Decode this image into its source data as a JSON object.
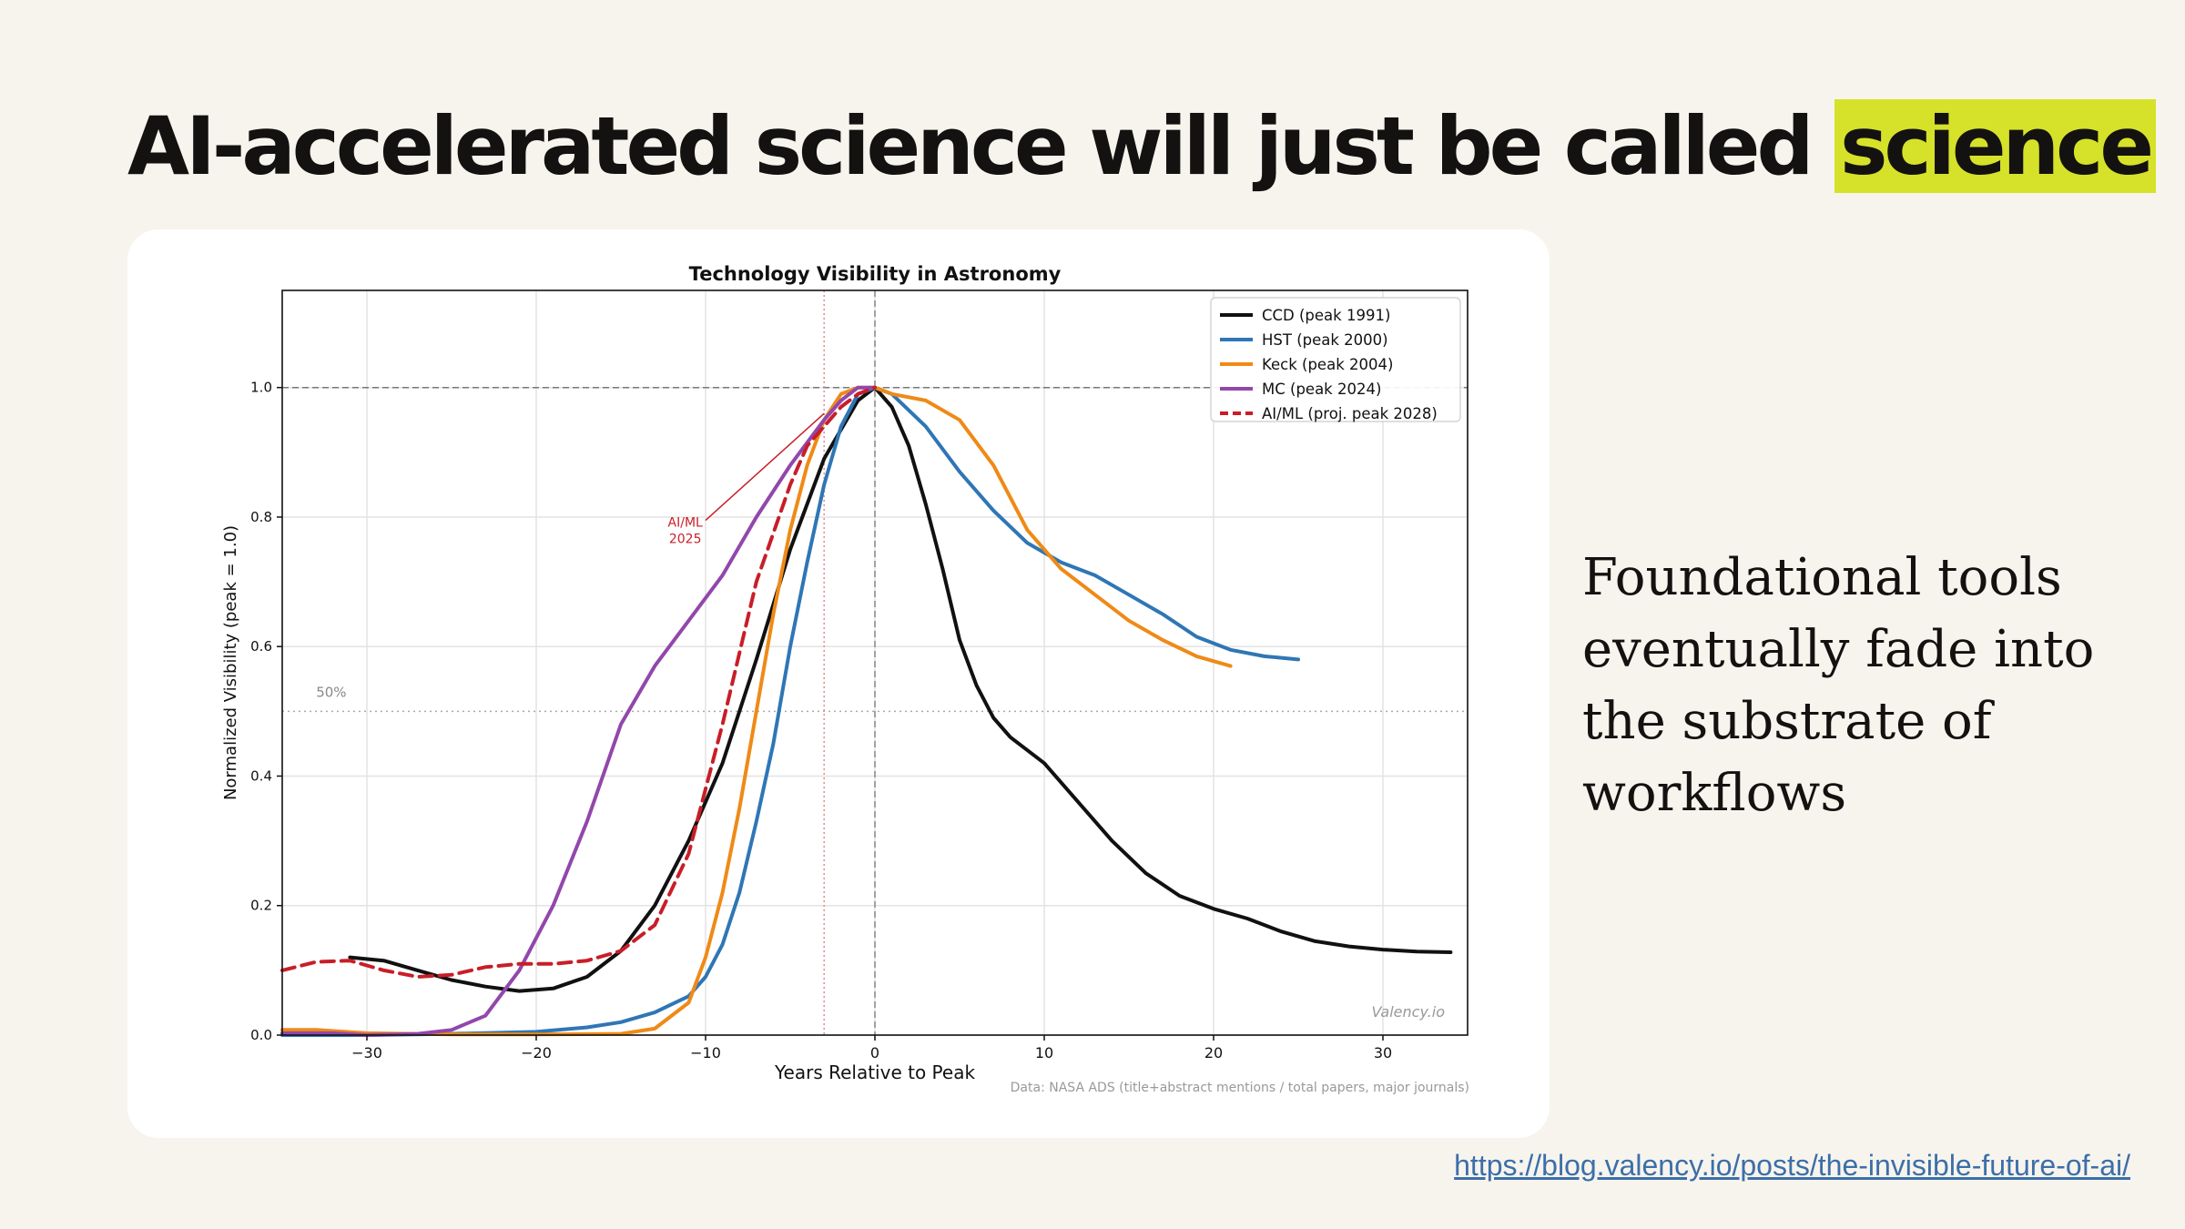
{
  "slide": {
    "title_main": "AI-accelerated science will just be called ",
    "title_highlight": "science",
    "side_text": "Foundational tools eventually fade into the substrate of workflows",
    "link": "https://blog.valency.io/posts/the-invisible-future-of-ai/",
    "highlight_color": "#d6e22a"
  },
  "chart_data": {
    "type": "line",
    "title": "Technology Visibility in Astronomy",
    "xlabel": "Years Relative to Peak",
    "ylabel": "Normalized Visibility (peak = 1.0)",
    "xlim": [
      -35,
      35
    ],
    "ylim": [
      0,
      1.15
    ],
    "xticks": [
      -30,
      -20,
      -10,
      0,
      10,
      20,
      30
    ],
    "xtick_labels": [
      "−30",
      "−20",
      "−10",
      "0",
      "10",
      "20",
      "30"
    ],
    "yticks": [
      0.0,
      0.2,
      0.4,
      0.6,
      0.8,
      1.0
    ],
    "ytick_labels": [
      "0.0",
      "0.2",
      "0.4",
      "0.6",
      "0.8",
      "1.0"
    ],
    "grid": true,
    "legend": "top-right",
    "reference_lines": {
      "peak": 1.0,
      "half": 0.5,
      "half_label": "50%",
      "peak_x": 0,
      "marker_x": -3
    },
    "annotation": {
      "text": [
        "AI/ML",
        "2025"
      ],
      "x": -3,
      "y": 0.96,
      "color": "#c81e28"
    },
    "watermark": "Valency.io",
    "source": "Data: NASA ADS (title+abstract mentions / total papers, major journals)",
    "series": [
      {
        "name": "CCD (peak 1991)",
        "color": "#111111",
        "dash": false,
        "x": [
          -31,
          -29,
          -27,
          -25,
          -23,
          -21,
          -19,
          -17,
          -15,
          -13,
          -11,
          -9,
          -7,
          -5,
          -3,
          -1,
          0,
          1,
          2,
          3,
          4,
          5,
          6,
          7,
          8,
          10,
          12,
          14,
          16,
          18,
          20,
          22,
          24,
          26,
          28,
          30,
          32,
          34
        ],
        "y": [
          0.12,
          0.115,
          0.1,
          0.085,
          0.075,
          0.068,
          0.072,
          0.09,
          0.13,
          0.2,
          0.3,
          0.42,
          0.58,
          0.75,
          0.89,
          0.98,
          1.0,
          0.97,
          0.91,
          0.82,
          0.72,
          0.61,
          0.54,
          0.49,
          0.46,
          0.42,
          0.36,
          0.3,
          0.25,
          0.215,
          0.195,
          0.18,
          0.16,
          0.145,
          0.137,
          0.132,
          0.129,
          0.128
        ]
      },
      {
        "name": "HST (peak 2000)",
        "color": "#2f76b5",
        "dash": false,
        "x": [
          -35,
          -30,
          -25,
          -20,
          -17,
          -15,
          -13,
          -11,
          -10,
          -9,
          -8,
          -7,
          -6,
          -5,
          -4,
          -3,
          -2,
          -1,
          0,
          1,
          3,
          5,
          7,
          9,
          11,
          13,
          15,
          17,
          19,
          21,
          23,
          25
        ],
        "y": [
          0.0,
          0.0,
          0.002,
          0.005,
          0.012,
          0.02,
          0.035,
          0.06,
          0.09,
          0.14,
          0.22,
          0.33,
          0.45,
          0.6,
          0.73,
          0.85,
          0.94,
          0.99,
          1.0,
          0.99,
          0.94,
          0.87,
          0.81,
          0.76,
          0.73,
          0.71,
          0.68,
          0.65,
          0.615,
          0.595,
          0.585,
          0.58
        ]
      },
      {
        "name": "Keck (peak 2004)",
        "color": "#ef8a17",
        "dash": false,
        "x": [
          -35,
          -33,
          -30,
          -25,
          -20,
          -15,
          -13,
          -11,
          -10,
          -9,
          -8,
          -7,
          -6,
          -5,
          -4,
          -3,
          -2,
          -1,
          0,
          1,
          3,
          5,
          7,
          9,
          11,
          13,
          15,
          17,
          19,
          21
        ],
        "y": [
          0.008,
          0.008,
          0.003,
          0.001,
          0.001,
          0.002,
          0.01,
          0.05,
          0.12,
          0.22,
          0.35,
          0.5,
          0.65,
          0.78,
          0.88,
          0.95,
          0.99,
          1.0,
          1.0,
          0.99,
          0.98,
          0.95,
          0.88,
          0.78,
          0.72,
          0.68,
          0.64,
          0.61,
          0.585,
          0.57
        ]
      },
      {
        "name": "MC (peak 2024)",
        "color": "#9247ab",
        "dash": false,
        "x": [
          -35,
          -32,
          -30,
          -27,
          -25,
          -23,
          -21,
          -19,
          -17,
          -15,
          -13,
          -11,
          -9,
          -7,
          -5,
          -3,
          -2,
          -1,
          0
        ],
        "y": [
          0.003,
          0.003,
          0.0,
          0.002,
          0.008,
          0.03,
          0.1,
          0.2,
          0.33,
          0.48,
          0.57,
          0.64,
          0.71,
          0.8,
          0.88,
          0.95,
          0.98,
          1.0,
          1.0
        ]
      },
      {
        "name": "AI/ML (proj. peak 2028)",
        "color": "#c81e28",
        "dash": true,
        "x": [
          -35,
          -33,
          -31,
          -29,
          -27,
          -25,
          -23,
          -21,
          -19,
          -17,
          -15,
          -13,
          -11,
          -9,
          -7,
          -5,
          -4,
          -3,
          -2,
          -1,
          0
        ],
        "y": [
          0.1,
          0.113,
          0.115,
          0.1,
          0.09,
          0.093,
          0.105,
          0.11,
          0.11,
          0.115,
          0.13,
          0.17,
          0.28,
          0.48,
          0.7,
          0.85,
          0.91,
          0.94,
          0.97,
          0.99,
          1.0
        ]
      }
    ]
  }
}
